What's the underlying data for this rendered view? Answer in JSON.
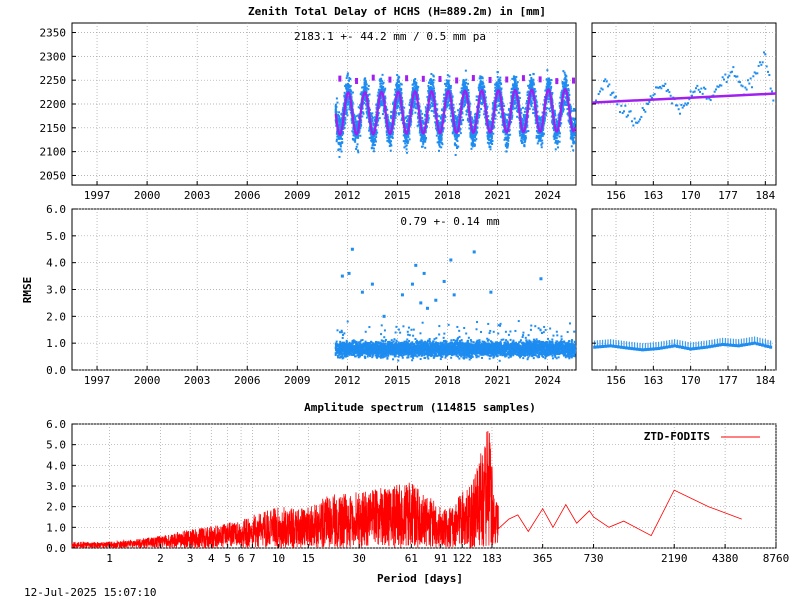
{
  "header": {
    "title": "Zenith Total Delay of HCHS (H=889.2m) in [mm]"
  },
  "footer": {
    "timestamp": "12-Jul-2025 15:07:10"
  },
  "colors": {
    "ztd_points": "#1e8cf0",
    "ztd_model": "#a020f0",
    "ztd_outliers": "#a020f0",
    "spectrum_line": "#ff0000"
  },
  "chart_data": [
    {
      "type": "scatter",
      "annotation": "2183.1 +-  44.2 mm /  0.5 mm pa",
      "x_range": [
        1995.5,
        2025.7
      ],
      "x_ticks": [
        "1997",
        "2000",
        "2003",
        "2006",
        "2009",
        "2012",
        "2015",
        "2018",
        "2021",
        "2024"
      ],
      "x_tick_values": [
        1997,
        2000,
        2003,
        2006,
        2009,
        2012,
        2015,
        2018,
        2021,
        2024
      ],
      "ylim": [
        2030,
        2370
      ],
      "y_ticks": [
        "2050",
        "2100",
        "2150",
        "2200",
        "2250",
        "2300",
        "2350"
      ],
      "y_tick_values": [
        2050,
        2100,
        2150,
        2200,
        2250,
        2300,
        2350
      ],
      "grid": true,
      "series_data_start": 2011.3,
      "seasonal_model": {
        "mean": 2183.1,
        "amplitude": 44.2,
        "trend_per_year": 0.5,
        "period_years": 1.0
      },
      "sampled_points": [
        [
          2011.5,
          2180
        ],
        [
          2012.0,
          2130
        ],
        [
          2012.5,
          2240
        ],
        [
          2013.0,
          2140
        ],
        [
          2013.5,
          2230
        ],
        [
          2014.0,
          2120
        ],
        [
          2014.5,
          2250
        ],
        [
          2015.0,
          2140
        ],
        [
          2015.5,
          2240
        ],
        [
          2016.0,
          2130
        ],
        [
          2016.5,
          2250
        ],
        [
          2017.0,
          2140
        ],
        [
          2017.5,
          2240
        ],
        [
          2018.0,
          2130
        ],
        [
          2018.5,
          2250
        ],
        [
          2019.0,
          2140
        ],
        [
          2019.5,
          2240
        ],
        [
          2020.0,
          2130
        ],
        [
          2020.5,
          2240
        ],
        [
          2021.0,
          2140
        ],
        [
          2021.5,
          2250
        ],
        [
          2022.0,
          2130
        ],
        [
          2022.5,
          2240
        ],
        [
          2023.0,
          2140
        ],
        [
          2023.5,
          2250
        ],
        [
          2024.0,
          2130
        ],
        [
          2024.5,
          2240
        ],
        [
          2025.0,
          2140
        ],
        [
          2025.5,
          2220
        ]
      ]
    },
    {
      "type": "scatter",
      "x_ticks": [
        "156",
        "163",
        "170",
        "177",
        "184"
      ],
      "x_tick_values": [
        156,
        163,
        170,
        177,
        184
      ],
      "x_range": [
        151.5,
        186
      ],
      "ylim": [
        2030,
        2370
      ],
      "grid": true,
      "sampled_points": [
        [
          152,
          2200
        ],
        [
          154,
          2250
        ],
        [
          156,
          2210
        ],
        [
          158,
          2180
        ],
        [
          160,
          2160
        ],
        [
          162,
          2200
        ],
        [
          164,
          2240
        ],
        [
          166,
          2230
        ],
        [
          168,
          2180
        ],
        [
          170,
          2220
        ],
        [
          172,
          2230
        ],
        [
          174,
          2210
        ],
        [
          176,
          2250
        ],
        [
          178,
          2270
        ],
        [
          180,
          2230
        ],
        [
          182,
          2260
        ],
        [
          184,
          2300
        ],
        [
          185.5,
          2210
        ]
      ],
      "trend_line": [
        [
          151.5,
          2203
        ],
        [
          186,
          2222
        ]
      ]
    },
    {
      "type": "scatter",
      "ylabel": "RMSE",
      "annotation": "0.79 +-  0.14 mm",
      "x_range": [
        1995.5,
        2025.7
      ],
      "x_ticks": [
        "1997",
        "2000",
        "2003",
        "2006",
        "2009",
        "2012",
        "2015",
        "2018",
        "2021",
        "2024"
      ],
      "x_tick_values": [
        1997,
        2000,
        2003,
        2006,
        2009,
        2012,
        2015,
        2018,
        2021,
        2024
      ],
      "ylim": [
        0.0,
        6.0
      ],
      "y_ticks": [
        "0.0",
        "1.0",
        "2.0",
        "3.0",
        "4.0",
        "5.0",
        "6.0"
      ],
      "y_tick_values": [
        0,
        1,
        2,
        3,
        4,
        5,
        6
      ],
      "grid": true,
      "series_data_start": 2011.3,
      "typical_value": 0.79,
      "spread": 0.14,
      "outliers": [
        [
          2011.7,
          3.5
        ],
        [
          2012.1,
          3.6
        ],
        [
          2012.3,
          4.5
        ],
        [
          2012.9,
          2.9
        ],
        [
          2013.5,
          3.2
        ],
        [
          2014.2,
          2.0
        ],
        [
          2015.3,
          2.8
        ],
        [
          2015.9,
          3.2
        ],
        [
          2016.1,
          3.9
        ],
        [
          2016.4,
          2.5
        ],
        [
          2016.6,
          3.6
        ],
        [
          2016.8,
          2.3
        ],
        [
          2017.3,
          2.6
        ],
        [
          2017.8,
          3.3
        ],
        [
          2018.2,
          4.1
        ],
        [
          2018.4,
          2.8
        ],
        [
          2019.6,
          4.4
        ],
        [
          2020.6,
          2.9
        ],
        [
          2023.6,
          3.4
        ]
      ]
    },
    {
      "type": "scatter",
      "x_ticks": [
        "156",
        "163",
        "170",
        "177",
        "184"
      ],
      "x_tick_values": [
        156,
        163,
        170,
        177,
        184
      ],
      "x_range": [
        151.5,
        186
      ],
      "ylim": [
        0.0,
        6.0
      ],
      "grid": true,
      "sampled_points": [
        [
          152,
          0.85
        ],
        [
          155,
          0.9
        ],
        [
          158,
          0.82
        ],
        [
          161,
          0.75
        ],
        [
          164,
          0.8
        ],
        [
          167,
          0.9
        ],
        [
          170,
          0.78
        ],
        [
          173,
          0.85
        ],
        [
          176,
          0.95
        ],
        [
          179,
          0.9
        ],
        [
          182,
          1.0
        ],
        [
          185,
          0.85
        ]
      ]
    },
    {
      "type": "line",
      "title": "Amplitude spectrum (114815 samples)",
      "xlabel": "Period [days]",
      "x_scale": "log",
      "x_range": [
        0.6,
        8760
      ],
      "x_ticks": [
        "1",
        "2",
        "3",
        "4",
        "5",
        "6",
        "7",
        "10",
        "15",
        "30",
        "61",
        "91",
        "122",
        "183",
        "365",
        "730",
        "2190",
        "4380",
        "8760"
      ],
      "x_tick_values": [
        1,
        2,
        3,
        4,
        5,
        6,
        7,
        10,
        15,
        30,
        61,
        91,
        122,
        183,
        365,
        730,
        2190,
        4380,
        8760
      ],
      "ylim": [
        0.0,
        6.0
      ],
      "y_ticks": [
        "0.0",
        "1.0",
        "2.0",
        "3.0",
        "4.0",
        "5.0",
        "6.0"
      ],
      "y_tick_values": [
        0,
        1,
        2,
        3,
        4,
        5,
        6
      ],
      "grid": true,
      "legend": "top-right",
      "series": [
        {
          "name": "ZTD-FODITS",
          "peaks": [
            [
              1,
              0.3
            ],
            [
              1.4,
              0.4
            ],
            [
              2,
              0.6
            ],
            [
              3,
              0.9
            ],
            [
              5,
              1.2
            ],
            [
              7,
              1.6
            ],
            [
              10,
              2.0
            ],
            [
              15,
              2.0
            ],
            [
              20,
              2.6
            ],
            [
              30,
              2.7
            ],
            [
              40,
              2.9
            ],
            [
              61,
              3.2
            ],
            [
              80,
              2.4
            ],
            [
              100,
              1.8
            ],
            [
              122,
              2.7
            ],
            [
              140,
              3.3
            ],
            [
              160,
              4.8
            ],
            [
              175,
              6.0
            ],
            [
              190,
              2.5
            ],
            [
              230,
              1.4
            ],
            [
              260,
              1.6
            ],
            [
              300,
              0.8
            ],
            [
              365,
              1.9
            ],
            [
              420,
              1.0
            ],
            [
              500,
              2.1
            ],
            [
              580,
              1.2
            ],
            [
              690,
              1.8
            ],
            [
              730,
              1.5
            ],
            [
              900,
              1.0
            ],
            [
              1100,
              1.3
            ],
            [
              1600,
              0.6
            ],
            [
              2190,
              2.8
            ],
            [
              3500,
              2.0
            ],
            [
              5500,
              1.4
            ]
          ]
        }
      ]
    }
  ]
}
